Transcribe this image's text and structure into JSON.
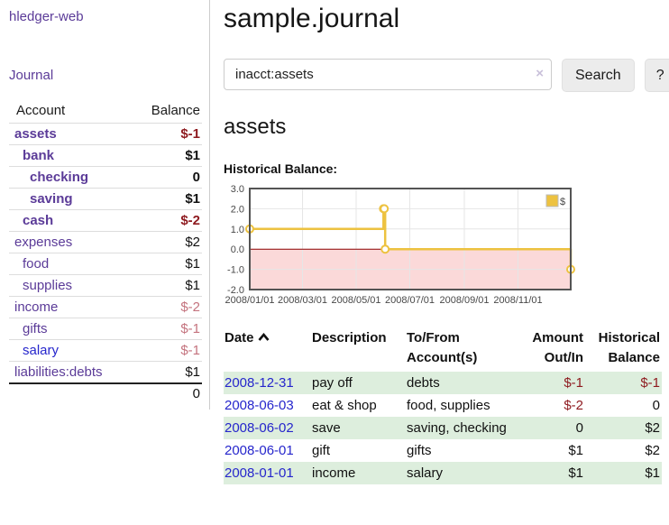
{
  "app": {
    "brand": "hledger-web"
  },
  "sidebar": {
    "nav": {
      "journal": "Journal"
    },
    "accounts": {
      "headers": {
        "account": "Account",
        "balance": "Balance"
      },
      "rows": [
        {
          "account": "assets",
          "balance": "$-1"
        },
        {
          "account": "bank",
          "balance": "$1"
        },
        {
          "account": "checking",
          "balance": "0"
        },
        {
          "account": "saving",
          "balance": "$1"
        },
        {
          "account": "cash",
          "balance": "$-2"
        },
        {
          "account": "expenses",
          "balance": "$2"
        },
        {
          "account": "food",
          "balance": "$1"
        },
        {
          "account": "supplies",
          "balance": "$1"
        },
        {
          "account": "income",
          "balance": "$-2"
        },
        {
          "account": "gifts",
          "balance": "$-1"
        },
        {
          "account": "salary",
          "balance": "$-1"
        },
        {
          "account": "liabilities:debts",
          "balance": "$1"
        }
      ],
      "total": "0"
    }
  },
  "header": {
    "title": "sample.journal"
  },
  "search": {
    "value": "inacct:assets",
    "clear_icon": "×",
    "button_label": "Search",
    "help_label": "?"
  },
  "account_page": {
    "title": "assets",
    "chart_label": "Historical Balance:"
  },
  "chart_data": {
    "type": "line",
    "step": true,
    "title": "Historical Balance",
    "series": [
      {
        "name": "$",
        "color": "#edc240",
        "points": [
          [
            "2008-01-01",
            1
          ],
          [
            "2008-06-01",
            2
          ],
          [
            "2008-06-02",
            2
          ],
          [
            "2008-06-03",
            0
          ],
          [
            "2008-12-31",
            -1
          ]
        ]
      }
    ],
    "xlim": [
      "2008-01-01",
      "2008-12-31"
    ],
    "ylim": [
      -2,
      3
    ],
    "y_ticks": [
      3.0,
      2.0,
      1.0,
      0.0,
      -1.0,
      -2.0
    ],
    "x_ticks": [
      "2008/01/01",
      "2008/03/01",
      "2008/05/01",
      "2008/07/01",
      "2008/09/01",
      "2008/11/01"
    ],
    "grid": true,
    "legend_position": "top-right",
    "negative_fill": "#fbd9d9",
    "zero_line_color": "#8b0000",
    "border_color": "#545454",
    "grid_color": "#e6e6e6"
  },
  "register": {
    "headers": {
      "date": "Date",
      "description": "Description",
      "accounts": "To/From Account(s)",
      "amount": "Amount Out/In",
      "balance": "Historical Balance"
    },
    "rows": [
      {
        "date": "2008-12-31",
        "description": "pay off",
        "accounts": "debts",
        "amount": "$-1",
        "balance": "$-1"
      },
      {
        "date": "2008-06-03",
        "description": "eat & shop",
        "accounts": "food, supplies",
        "amount": "$-2",
        "balance": "0"
      },
      {
        "date": "2008-06-02",
        "description": "save",
        "accounts": "saving, checking",
        "amount": "0",
        "balance": "$2"
      },
      {
        "date": "2008-06-01",
        "description": "gift",
        "accounts": "gifts",
        "amount": "$1",
        "balance": "$2"
      },
      {
        "date": "2008-01-01",
        "description": "income",
        "accounts": "salary",
        "amount": "$1",
        "balance": "$1"
      }
    ]
  },
  "colors": {
    "link_purple": "#5b3b98",
    "link_blue": "#2626cc",
    "negative": "#8e1a1f",
    "negative_soft": "#c4737e",
    "row_stripe_green": "#ddeedd",
    "series_gold": "#edc240"
  }
}
